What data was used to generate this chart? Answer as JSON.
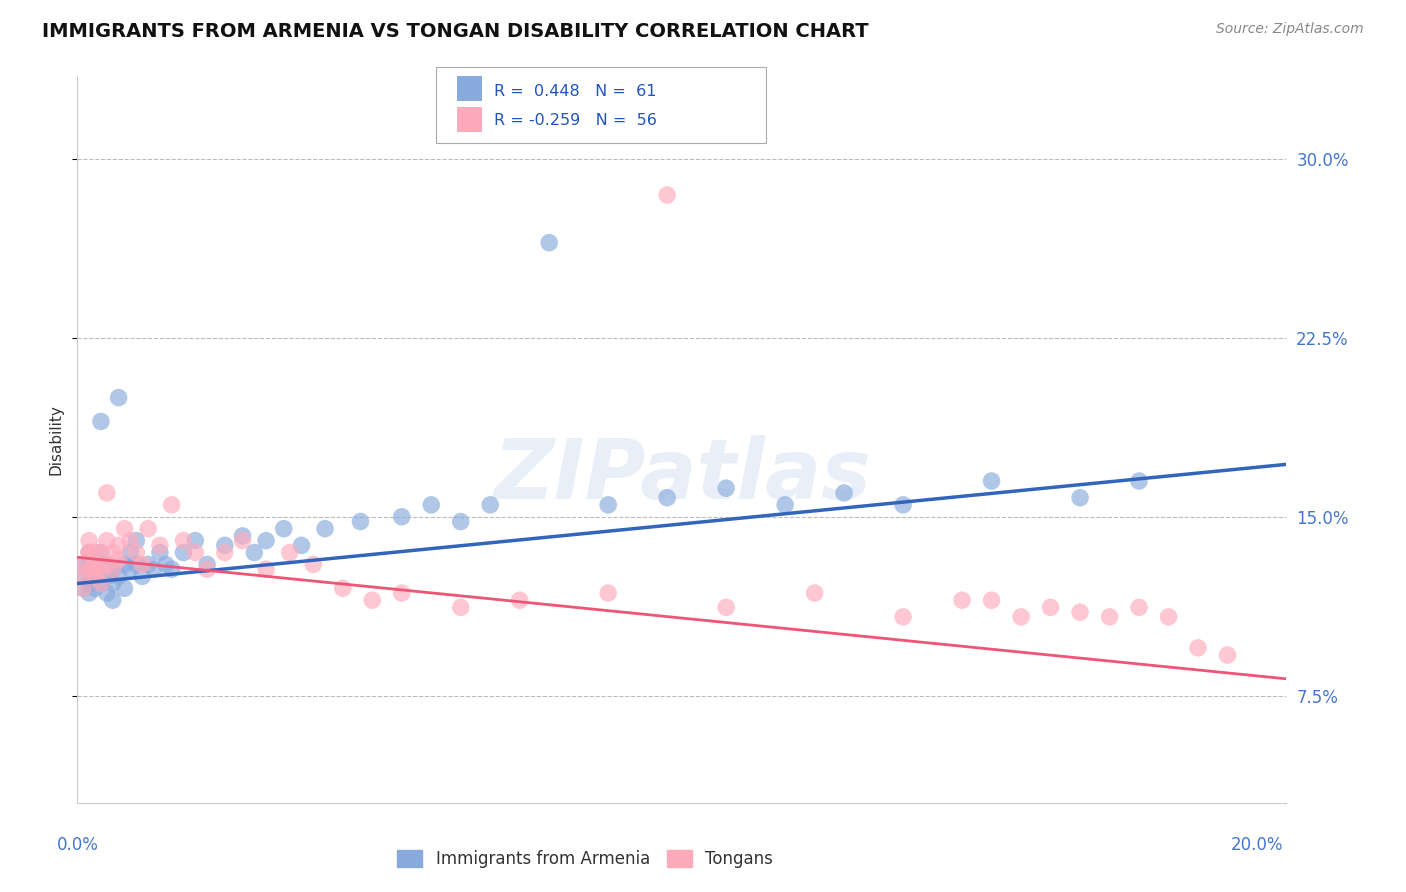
{
  "title": "IMMIGRANTS FROM ARMENIA VS TONGAN DISABILITY CORRELATION CHART",
  "source": "Source: ZipAtlas.com",
  "ylabel": "Disability",
  "xlim": [
    0.0,
    0.205
  ],
  "ylim": [
    0.03,
    0.335
  ],
  "yticks": [
    0.075,
    0.15,
    0.225,
    0.3
  ],
  "ytick_labels": [
    "7.5%",
    "15.0%",
    "22.5%",
    "30.0%"
  ],
  "blue_color": "#88AADD",
  "pink_color": "#FFAABB",
  "blue_line_color": "#3366BB",
  "pink_line_color": "#EE5577",
  "watermark": "ZIPatlas",
  "arm_line_x0": 0.0,
  "arm_line_x1": 0.205,
  "arm_line_y0": 0.122,
  "arm_line_y1": 0.172,
  "tong_line_x0": 0.0,
  "tong_line_x1": 0.205,
  "tong_line_y0": 0.133,
  "tong_line_y1": 0.082,
  "armenia_x": [
    0.001,
    0.001,
    0.001,
    0.002,
    0.002,
    0.002,
    0.002,
    0.002,
    0.003,
    0.003,
    0.003,
    0.003,
    0.004,
    0.004,
    0.004,
    0.004,
    0.005,
    0.005,
    0.005,
    0.006,
    0.006,
    0.006,
    0.007,
    0.007,
    0.008,
    0.008,
    0.009,
    0.009,
    0.01,
    0.01,
    0.011,
    0.012,
    0.013,
    0.014,
    0.015,
    0.016,
    0.018,
    0.02,
    0.022,
    0.025,
    0.028,
    0.03,
    0.032,
    0.035,
    0.038,
    0.042,
    0.048,
    0.055,
    0.06,
    0.065,
    0.07,
    0.08,
    0.09,
    0.1,
    0.11,
    0.12,
    0.13,
    0.14,
    0.155,
    0.17,
    0.18
  ],
  "armenia_y": [
    0.13,
    0.125,
    0.12,
    0.135,
    0.128,
    0.122,
    0.13,
    0.118,
    0.132,
    0.125,
    0.12,
    0.128,
    0.135,
    0.128,
    0.122,
    0.19,
    0.13,
    0.125,
    0.118,
    0.128,
    0.122,
    0.115,
    0.2,
    0.125,
    0.13,
    0.12,
    0.128,
    0.135,
    0.13,
    0.14,
    0.125,
    0.13,
    0.128,
    0.135,
    0.13,
    0.128,
    0.135,
    0.14,
    0.13,
    0.138,
    0.142,
    0.135,
    0.14,
    0.145,
    0.138,
    0.145,
    0.148,
    0.15,
    0.155,
    0.148,
    0.155,
    0.265,
    0.155,
    0.158,
    0.162,
    0.155,
    0.16,
    0.155,
    0.165,
    0.158,
    0.165
  ],
  "tongan_x": [
    0.001,
    0.001,
    0.001,
    0.002,
    0.002,
    0.002,
    0.002,
    0.003,
    0.003,
    0.003,
    0.003,
    0.004,
    0.004,
    0.004,
    0.005,
    0.005,
    0.005,
    0.006,
    0.006,
    0.007,
    0.007,
    0.008,
    0.009,
    0.01,
    0.011,
    0.012,
    0.014,
    0.016,
    0.018,
    0.02,
    0.022,
    0.025,
    0.028,
    0.032,
    0.036,
    0.04,
    0.045,
    0.05,
    0.055,
    0.065,
    0.075,
    0.09,
    0.1,
    0.11,
    0.125,
    0.14,
    0.15,
    0.155,
    0.16,
    0.165,
    0.17,
    0.175,
    0.18,
    0.185,
    0.19,
    0.195
  ],
  "tongan_y": [
    0.13,
    0.125,
    0.12,
    0.135,
    0.128,
    0.135,
    0.14,
    0.128,
    0.135,
    0.125,
    0.13,
    0.135,
    0.128,
    0.122,
    0.16,
    0.13,
    0.14,
    0.128,
    0.135,
    0.132,
    0.138,
    0.145,
    0.14,
    0.135,
    0.13,
    0.145,
    0.138,
    0.155,
    0.14,
    0.135,
    0.128,
    0.135,
    0.14,
    0.128,
    0.135,
    0.13,
    0.12,
    0.115,
    0.118,
    0.112,
    0.115,
    0.118,
    0.285,
    0.112,
    0.118,
    0.108,
    0.115,
    0.115,
    0.108,
    0.112,
    0.11,
    0.108,
    0.112,
    0.108,
    0.095,
    0.092
  ]
}
